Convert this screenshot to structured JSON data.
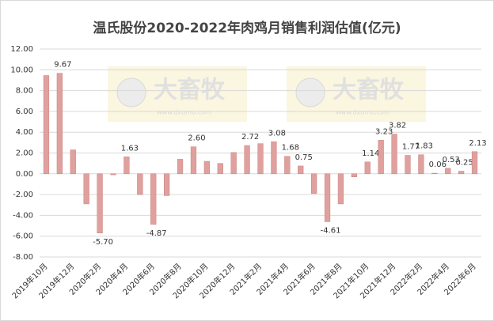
{
  "chart_data": {
    "type": "bar",
    "title": "温氏股份2020-2022年肉鸡月销售利润估值(亿元)",
    "watermark": {
      "text": "大畜牧",
      "url": "www.dxumu.com"
    },
    "categories": [
      "2019年10月",
      null,
      "2019年12月",
      null,
      "2020年2月",
      null,
      "2020年4月",
      null,
      "2020年6月",
      null,
      "2020年8月",
      null,
      "2020年10月",
      null,
      "2020年12月",
      null,
      "2021年2月",
      null,
      "2021年4月",
      null,
      "2021年6月",
      null,
      "2021年8月",
      null,
      "2021年10月",
      null,
      "2021年12月",
      null,
      "2022年2月",
      null,
      "2022年4月",
      null,
      "2022年6月"
    ],
    "values": [
      9.45,
      9.67,
      2.3,
      -2.9,
      -5.7,
      -0.1,
      1.63,
      -2.0,
      -4.87,
      -2.1,
      1.4,
      2.6,
      1.2,
      1.0,
      2.05,
      2.72,
      2.9,
      3.08,
      1.68,
      0.75,
      -1.9,
      -4.61,
      -2.9,
      -0.3,
      1.14,
      3.23,
      3.82,
      1.77,
      1.83,
      0.06,
      0.53,
      0.25,
      2.13
    ],
    "value_labels": [
      null,
      "9.67",
      null,
      null,
      "-5.70",
      null,
      "1.63",
      null,
      "-4.87",
      null,
      null,
      "2.60",
      null,
      null,
      null,
      "2.72",
      null,
      "3.08",
      "1.68",
      "0.75",
      null,
      "-4.61",
      null,
      null,
      "1.14",
      "3.23",
      "3.82",
      "1.77",
      "1.83",
      "0.06",
      "0.53",
      "0.25",
      "2.13"
    ],
    "color": "#e0a09e",
    "ylim": [
      -8,
      12
    ],
    "yticks": [
      {
        "value": -8,
        "label": "-8.00"
      },
      {
        "value": -6,
        "label": "-6.00"
      },
      {
        "value": -4,
        "label": "-4.00"
      },
      {
        "value": -2,
        "label": "-2.00"
      },
      {
        "value": 0,
        "label": "0.00"
      },
      {
        "value": 2,
        "label": "2.00"
      },
      {
        "value": 4,
        "label": "4.00"
      },
      {
        "value": 6,
        "label": "6.00"
      },
      {
        "value": 8,
        "label": "8.00"
      },
      {
        "value": 10,
        "label": "10.00"
      },
      {
        "value": 12,
        "label": "12.00"
      }
    ],
    "grid": true
  }
}
